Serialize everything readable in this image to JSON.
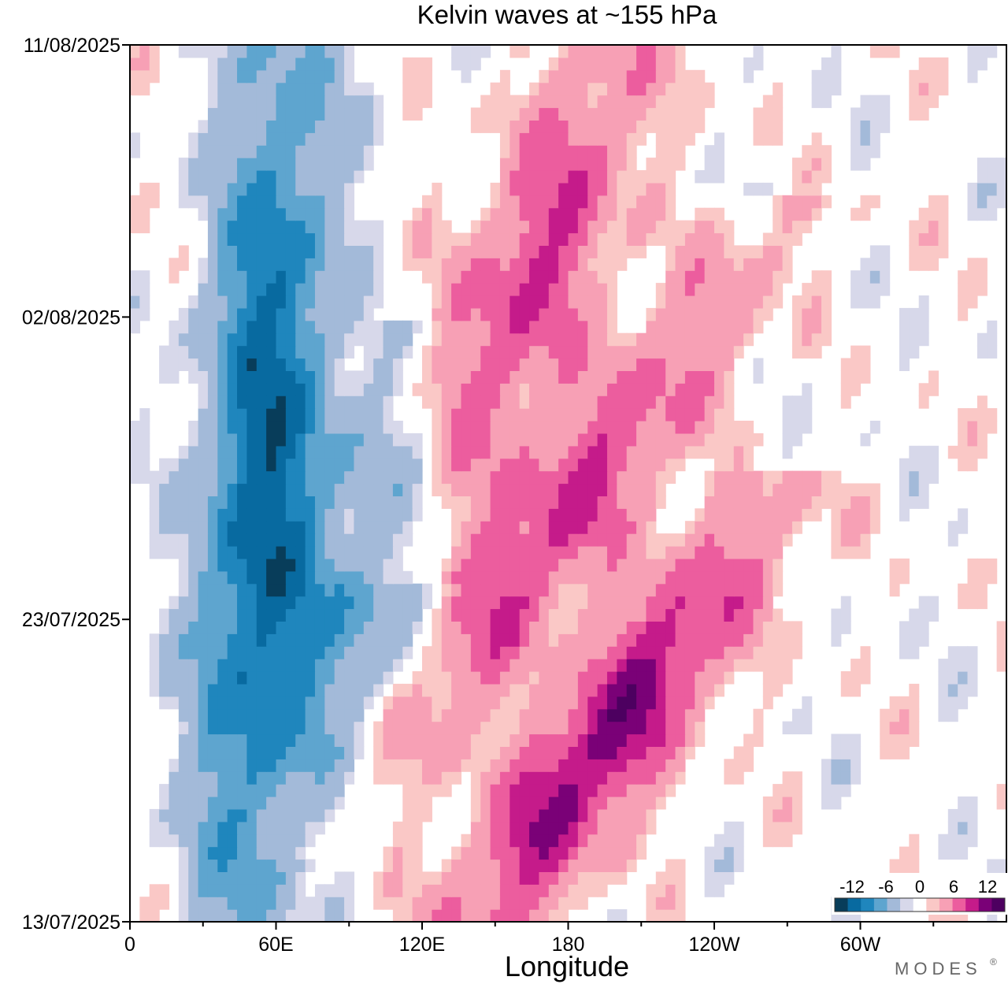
{
  "chart_data": {
    "type": "heatmap",
    "title": "Kelvin waves at ~155 hPa",
    "xlabel": "Longitude",
    "ylabel": "",
    "x_axis": {
      "range": [
        0,
        360
      ],
      "major_ticks": [
        0,
        60,
        120,
        180,
        240,
        300
      ],
      "tick_labels": [
        "0",
        "60E",
        "120E",
        "180",
        "120W",
        "60W"
      ],
      "minor_step": 30
    },
    "y_axis": {
      "type": "date",
      "range": [
        "13/07/2025",
        "11/08/2025"
      ],
      "tick_labels": [
        "13/07/2025",
        "23/07/2025",
        "02/08/2025",
        "11/08/2025"
      ]
    },
    "colorbar": {
      "placement": "bottom-right",
      "tick_labels": [
        "-12",
        "-6",
        "0",
        "6",
        "12"
      ],
      "levels": [
        -15,
        -12,
        -9,
        -6,
        -3,
        -1.5,
        1.5,
        3,
        6,
        9,
        12,
        15
      ],
      "colors": [
        "#083d5a",
        "#086aa0",
        "#1f86bd",
        "#5ea5cf",
        "#a3bad9",
        "#d7d8ea",
        "#ffffff",
        "#fac8c6",
        "#f7a0b5",
        "#ec5d9e",
        "#c51b8a",
        "#7a0177",
        "#4d0060"
      ]
    },
    "grid": false,
    "features": [
      {
        "name": "negative-anomaly-band",
        "sign": "negative",
        "lon_peak": 55,
        "intensity": 14,
        "trend_deg_per_day": 0.6,
        "time_start": 0,
        "time_end": 29
      },
      {
        "name": "negative-anomaly-branch",
        "sign": "negative",
        "lon_peak": 100,
        "intensity": 7,
        "trend_deg_per_day": 1.5,
        "time_start": 5,
        "time_end": 17
      },
      {
        "name": "positive-wave-1",
        "sign": "positive",
        "lon_peak": 195,
        "intensity": 13,
        "trend_deg_per_day": 8,
        "time_start": 0,
        "time_end": 12
      },
      {
        "name": "positive-wave-2",
        "sign": "positive",
        "lon_peak": 175,
        "intensity": 9,
        "trend_deg_per_day": 8.5,
        "time_start": 5,
        "time_end": 21
      },
      {
        "name": "positive-wave-3",
        "sign": "positive",
        "lon_peak": 165,
        "intensity": 9,
        "trend_deg_per_day": 4.5,
        "time_start": 14,
        "time_end": 29
      }
    ]
  },
  "branding": {
    "logo_text": "MODES",
    "registered_mark": "®"
  }
}
